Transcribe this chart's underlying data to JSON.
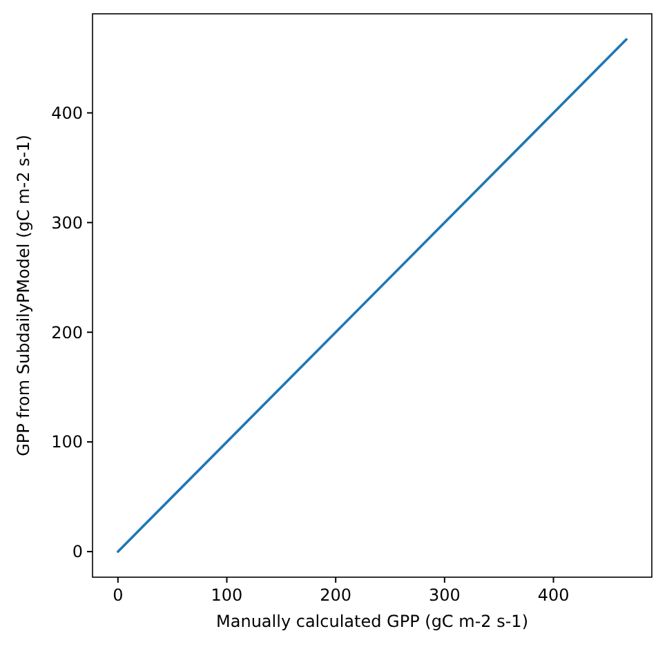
{
  "chart_data": {
    "type": "line",
    "xlabel": "Manually calculated GPP (gC m-2 s-1)",
    "ylabel": "GPP from SubdailyPModel (gC m-2 s-1)",
    "x": [
      0,
      467
    ],
    "series": [
      {
        "color": "#1f77b4",
        "values": [
          0,
          467
        ]
      }
    ],
    "xlim": [
      -23.35,
      490.35
    ],
    "xticks": [
      0,
      100,
      200,
      300,
      400
    ],
    "ylim": [
      -23.35,
      490.35
    ],
    "yticks": [
      0,
      100,
      200,
      300,
      400
    ],
    "grid": false,
    "marker": "none",
    "line_style": "solid"
  }
}
